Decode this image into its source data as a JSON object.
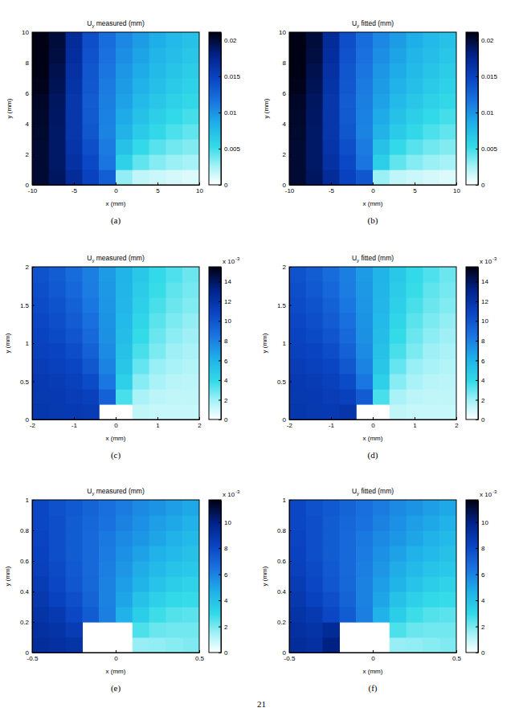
{
  "chart_data": [
    {
      "type": "heatmap",
      "title": "Uy measured (mm)",
      "x_label": "x (mm)",
      "y_label": "y (mm)",
      "caption": "(a)",
      "xlim": [
        -10,
        10
      ],
      "ylim": [
        0,
        10
      ],
      "xticks": [
        -10,
        -5,
        0,
        5,
        10
      ],
      "yticks": [
        0,
        2,
        4,
        6,
        8,
        10
      ],
      "x": [
        -9,
        -7,
        -5,
        -3,
        -1,
        1,
        3,
        5,
        7,
        9
      ],
      "y": [
        0.5,
        1.5,
        2.5,
        3.5,
        4.5,
        5.5,
        6.5,
        7.5,
        8.5,
        9.5
      ],
      "values": [
        [
          0.0202,
          0.019,
          0.017,
          0.015,
          0.013,
          0.003,
          0.0018,
          0.0015,
          0.0012,
          0.001
        ],
        [
          0.0202,
          0.0188,
          0.0165,
          0.0145,
          0.0115,
          0.006,
          0.0042,
          0.0033,
          0.0028,
          0.0025
        ],
        [
          0.0202,
          0.0188,
          0.0162,
          0.014,
          0.0112,
          0.0072,
          0.0054,
          0.0044,
          0.0038,
          0.0034
        ],
        [
          0.0203,
          0.0188,
          0.016,
          0.0135,
          0.0108,
          0.0082,
          0.0065,
          0.0055,
          0.0047,
          0.0042
        ],
        [
          0.0204,
          0.0189,
          0.016,
          0.0133,
          0.0109,
          0.0087,
          0.0072,
          0.0062,
          0.0054,
          0.0049
        ],
        [
          0.0205,
          0.019,
          0.016,
          0.0132,
          0.011,
          0.0092,
          0.0078,
          0.0068,
          0.006,
          0.0055
        ],
        [
          0.0208,
          0.0193,
          0.0163,
          0.0134,
          0.0112,
          0.0095,
          0.0083,
          0.0073,
          0.0065,
          0.006
        ],
        [
          0.021,
          0.0195,
          0.0165,
          0.0135,
          0.0115,
          0.0098,
          0.0087,
          0.0077,
          0.007,
          0.0064
        ],
        [
          0.021,
          0.0198,
          0.0168,
          0.0138,
          0.0118,
          0.0102,
          0.0091,
          0.0081,
          0.0074,
          0.0068
        ],
        [
          0.021,
          0.02,
          0.017,
          0.014,
          0.012,
          0.0105,
          0.0095,
          0.0085,
          0.0078,
          0.0072
        ]
      ],
      "colorbar_lim": [
        0,
        0.0211
      ],
      "colorbar_ticks": [
        0,
        0.005,
        0.01,
        0.015,
        0.02
      ]
    },
    {
      "type": "heatmap",
      "title": "Uy fitted (mm)",
      "x_label": "x (mm)",
      "y_label": "y (mm)",
      "caption": "(b)",
      "xlim": [
        -10,
        10
      ],
      "ylim": [
        0,
        10
      ],
      "xticks": [
        -10,
        -5,
        0,
        5,
        10
      ],
      "yticks": [
        0,
        2,
        4,
        6,
        8,
        10
      ],
      "x": [
        -9,
        -7,
        -5,
        -3,
        -1,
        1,
        3,
        5,
        7,
        9
      ],
      "y": [
        0.5,
        1.5,
        2.5,
        3.5,
        4.5,
        5.5,
        6.5,
        7.5,
        8.5,
        9.5
      ],
      "values": [
        [
          0.0202,
          0.019,
          0.017,
          0.015,
          0.0135,
          0.0028,
          0.0018,
          0.0015,
          0.0012,
          0.001
        ],
        [
          0.0202,
          0.0188,
          0.0165,
          0.0145,
          0.0115,
          0.0062,
          0.0042,
          0.0033,
          0.0028,
          0.0025
        ],
        [
          0.0202,
          0.0188,
          0.0162,
          0.014,
          0.0112,
          0.0072,
          0.0054,
          0.0044,
          0.0038,
          0.0034
        ],
        [
          0.0203,
          0.0188,
          0.016,
          0.0135,
          0.0108,
          0.0082,
          0.0065,
          0.0055,
          0.0047,
          0.0042
        ],
        [
          0.0204,
          0.0189,
          0.016,
          0.0133,
          0.0109,
          0.0087,
          0.0072,
          0.0062,
          0.0054,
          0.0049
        ],
        [
          0.0205,
          0.019,
          0.016,
          0.0132,
          0.011,
          0.0092,
          0.0078,
          0.0068,
          0.006,
          0.0055
        ],
        [
          0.0208,
          0.0193,
          0.0163,
          0.0134,
          0.0112,
          0.0095,
          0.0083,
          0.0073,
          0.0065,
          0.006
        ],
        [
          0.021,
          0.0195,
          0.0165,
          0.0135,
          0.0115,
          0.0098,
          0.0087,
          0.0077,
          0.007,
          0.0064
        ],
        [
          0.021,
          0.0198,
          0.0168,
          0.0138,
          0.0118,
          0.0102,
          0.0091,
          0.0081,
          0.0074,
          0.0068
        ],
        [
          0.021,
          0.02,
          0.017,
          0.014,
          0.012,
          0.0105,
          0.0095,
          0.0085,
          0.0078,
          0.0072
        ]
      ],
      "colorbar_lim": [
        0,
        0.0211
      ],
      "colorbar_ticks": [
        0,
        0.005,
        0.01,
        0.015,
        0.02
      ]
    },
    {
      "type": "heatmap",
      "title": "Uy measured (mm)",
      "x_label": "x (mm)",
      "y_label": "y (mm)",
      "caption": "(c)",
      "xlim": [
        -2,
        2
      ],
      "ylim": [
        0,
        2
      ],
      "xticks": [
        -2,
        -1,
        0,
        1,
        2
      ],
      "yticks": [
        0,
        0.5,
        1,
        1.5,
        2
      ],
      "x": [
        -1.8,
        -1.4,
        -1,
        -0.6,
        -0.2,
        0.2,
        0.6,
        1,
        1.4,
        1.8
      ],
      "y": [
        0.1,
        0.3,
        0.5,
        0.7,
        0.9,
        1.1,
        1.3,
        1.5,
        1.7,
        1.9
      ],
      "values": [
        [
          0.0117,
          0.0116,
          0.0115,
          0.0114,
          null,
          null,
          0.0013,
          0.0012,
          0.0012,
          0.0012
        ],
        [
          0.0116,
          0.0115,
          0.0113,
          0.0111,
          0.0094,
          0.0035,
          0.0018,
          0.0014,
          0.0013,
          0.0013
        ],
        [
          0.0115,
          0.0114,
          0.0111,
          0.0105,
          0.0084,
          0.0045,
          0.0024,
          0.0018,
          0.0015,
          0.0014
        ],
        [
          0.0113,
          0.0111,
          0.0108,
          0.0099,
          0.0079,
          0.005,
          0.003,
          0.0021,
          0.0018,
          0.0016
        ],
        [
          0.0111,
          0.0109,
          0.0104,
          0.0094,
          0.0076,
          0.0053,
          0.0035,
          0.0026,
          0.002,
          0.0018
        ],
        [
          0.0109,
          0.0106,
          0.01,
          0.009,
          0.0074,
          0.0055,
          0.0039,
          0.0029,
          0.0023,
          0.002
        ],
        [
          0.0107,
          0.0103,
          0.0097,
          0.0087,
          0.0073,
          0.0057,
          0.0042,
          0.0032,
          0.0026,
          0.0022
        ],
        [
          0.0105,
          0.0101,
          0.0094,
          0.0084,
          0.0072,
          0.0058,
          0.0045,
          0.0035,
          0.0029,
          0.0025
        ],
        [
          0.0103,
          0.0098,
          0.0091,
          0.0082,
          0.0071,
          0.0059,
          0.0047,
          0.0038,
          0.0031,
          0.0027
        ],
        [
          0.0101,
          0.0096,
          0.0089,
          0.0081,
          0.007,
          0.006,
          0.0049,
          0.004,
          0.0034,
          0.0029
        ]
      ],
      "colorbar_lim": [
        0,
        0.0155
      ],
      "colorbar_ticks": [
        0,
        {
          "value": 0.002,
          "label": "2"
        },
        {
          "value": 0.004,
          "label": "4"
        },
        {
          "value": 0.006,
          "label": "6"
        },
        {
          "value": 0.008,
          "label": "8"
        },
        {
          "value": 0.01,
          "label": "10"
        },
        {
          "value": 0.012,
          "label": "12"
        },
        {
          "value": 0.014,
          "label": "14"
        }
      ],
      "colorbar_scale": "x 10",
      "colorbar_scale_exponent": "-3"
    },
    {
      "type": "heatmap",
      "title": "Uy fitted (mm)",
      "x_label": "x (mm)",
      "y_label": "y (mm)",
      "caption": "(d)",
      "xlim": [
        -2,
        2
      ],
      "ylim": [
        0,
        2
      ],
      "xticks": [
        -2,
        -1,
        0,
        1,
        2
      ],
      "yticks": [
        0,
        0.5,
        1,
        1.5,
        2
      ],
      "x": [
        -1.8,
        -1.4,
        -1,
        -0.6,
        -0.2,
        0.2,
        0.6,
        1,
        1.4,
        1.8
      ],
      "y": [
        0.1,
        0.3,
        0.5,
        0.7,
        0.9,
        1.1,
        1.3,
        1.5,
        1.7,
        1.9
      ],
      "values": [
        [
          0.0117,
          0.0116,
          0.0115,
          0.0118,
          null,
          null,
          0.0013,
          0.0012,
          0.0012,
          0.0012
        ],
        [
          0.0116,
          0.0115,
          0.0113,
          0.0111,
          0.0097,
          0.0035,
          0.0018,
          0.0014,
          0.0013,
          0.0013
        ],
        [
          0.0115,
          0.0114,
          0.0111,
          0.0105,
          0.0084,
          0.0045,
          0.0024,
          0.0018,
          0.0015,
          0.0014
        ],
        [
          0.0113,
          0.0111,
          0.0108,
          0.0099,
          0.0079,
          0.005,
          0.003,
          0.0021,
          0.0018,
          0.0016
        ],
        [
          0.0111,
          0.0109,
          0.0104,
          0.0094,
          0.0076,
          0.0053,
          0.0035,
          0.0026,
          0.002,
          0.0018
        ],
        [
          0.0109,
          0.0106,
          0.01,
          0.009,
          0.0074,
          0.0055,
          0.0039,
          0.0029,
          0.0023,
          0.002
        ],
        [
          0.0107,
          0.0103,
          0.0097,
          0.0087,
          0.0073,
          0.0057,
          0.0042,
          0.0032,
          0.0026,
          0.0022
        ],
        [
          0.0105,
          0.0101,
          0.0094,
          0.0084,
          0.0072,
          0.0058,
          0.0045,
          0.0035,
          0.0029,
          0.0025
        ],
        [
          0.0103,
          0.0098,
          0.0091,
          0.0082,
          0.0071,
          0.0059,
          0.0047,
          0.0038,
          0.0031,
          0.0027
        ],
        [
          0.0101,
          0.0096,
          0.0089,
          0.0081,
          0.007,
          0.006,
          0.0049,
          0.004,
          0.0034,
          0.0029
        ]
      ],
      "colorbar_lim": [
        0,
        0.0155
      ],
      "colorbar_ticks": [
        0,
        {
          "value": 0.002,
          "label": "2"
        },
        {
          "value": 0.004,
          "label": "4"
        },
        {
          "value": 0.006,
          "label": "6"
        },
        {
          "value": 0.008,
          "label": "8"
        },
        {
          "value": 0.01,
          "label": "10"
        },
        {
          "value": 0.012,
          "label": "12"
        },
        {
          "value": 0.014,
          "label": "14"
        }
      ],
      "colorbar_scale": "x 10",
      "colorbar_scale_exponent": "-3"
    },
    {
      "type": "heatmap",
      "title": "Uy measured (mm)",
      "x_label": "x (mm)",
      "y_label": "y (mm)",
      "caption": "(e)",
      "xlim": [
        -0.5,
        0.5
      ],
      "ylim": [
        0,
        1
      ],
      "xticks": [
        -0.5,
        0,
        0.5
      ],
      "yticks": [
        0,
        0.2,
        0.4,
        0.6,
        0.8,
        1
      ],
      "x": [
        -0.45,
        -0.35,
        -0.25,
        -0.15,
        -0.05,
        0.05,
        0.15,
        0.25,
        0.35,
        0.45
      ],
      "y": [
        0.05,
        0.15,
        0.25,
        0.35,
        0.45,
        0.55,
        0.65,
        0.75,
        0.85,
        0.95
      ],
      "values": [
        [
          0.0094,
          0.0092,
          0.009,
          null,
          null,
          null,
          0.0016,
          0.0017,
          0.0018,
          0.0019
        ],
        [
          0.0092,
          0.009,
          0.0086,
          null,
          null,
          null,
          0.0026,
          0.0022,
          0.0021,
          0.0021
        ],
        [
          0.009,
          0.0087,
          0.0081,
          0.0073,
          0.0061,
          0.0046,
          0.0035,
          0.0028,
          0.0025,
          0.0024
        ],
        [
          0.0088,
          0.0083,
          0.0078,
          0.007,
          0.006,
          0.005,
          0.004,
          0.0034,
          0.003,
          0.0029
        ],
        [
          0.0086,
          0.0081,
          0.0075,
          0.0069,
          0.006,
          0.0052,
          0.0045,
          0.0039,
          0.0035,
          0.0033
        ],
        [
          0.0084,
          0.008,
          0.0074,
          0.0068,
          0.0061,
          0.0054,
          0.0048,
          0.0043,
          0.0039,
          0.0037
        ],
        [
          0.0083,
          0.0078,
          0.0073,
          0.0068,
          0.0062,
          0.0056,
          0.0051,
          0.0046,
          0.0043,
          0.004
        ],
        [
          0.0082,
          0.0078,
          0.0073,
          0.0068,
          0.0063,
          0.0058,
          0.0054,
          0.005,
          0.0046,
          0.0043
        ],
        [
          0.0081,
          0.0078,
          0.0073,
          0.0069,
          0.0065,
          0.006,
          0.0056,
          0.0052,
          0.0049,
          0.0046
        ],
        [
          0.0081,
          0.0077,
          0.0074,
          0.007,
          0.0066,
          0.0062,
          0.0058,
          0.0055,
          0.0052,
          0.0049
        ]
      ],
      "colorbar_lim": [
        0,
        0.0117
      ],
      "colorbar_ticks": [
        0,
        {
          "value": 0.002,
          "label": "2"
        },
        {
          "value": 0.004,
          "label": "4"
        },
        {
          "value": 0.006,
          "label": "6"
        },
        {
          "value": 0.008,
          "label": "8"
        },
        {
          "value": 0.01,
          "label": "10"
        }
      ],
      "colorbar_scale": "x 10",
      "colorbar_scale_exponent": "-3"
    },
    {
      "type": "heatmap",
      "title": "Uy fitted (mm)",
      "x_label": "x (mm)",
      "y_label": "y (mm)",
      "caption": "(f)",
      "xlim": [
        -0.5,
        0.5
      ],
      "ylim": [
        0,
        1
      ],
      "xticks": [
        -0.5,
        0,
        0.5
      ],
      "yticks": [
        0,
        0.2,
        0.4,
        0.6,
        0.8,
        1
      ],
      "x": [
        -0.45,
        -0.35,
        -0.25,
        -0.15,
        -0.05,
        0.05,
        0.15,
        0.25,
        0.35,
        0.45
      ],
      "y": [
        0.05,
        0.15,
        0.25,
        0.35,
        0.45,
        0.55,
        0.65,
        0.75,
        0.85,
        0.95
      ],
      "values": [
        [
          0.0094,
          0.0092,
          0.01,
          null,
          null,
          null,
          0.0016,
          0.0017,
          0.0018,
          0.0019
        ],
        [
          0.0092,
          0.009,
          0.0095,
          null,
          null,
          null,
          0.0026,
          0.0022,
          0.0021,
          0.0021
        ],
        [
          0.009,
          0.0087,
          0.0081,
          0.0073,
          0.0061,
          0.0046,
          0.0035,
          0.0028,
          0.0025,
          0.0024
        ],
        [
          0.0088,
          0.0083,
          0.0078,
          0.007,
          0.006,
          0.005,
          0.004,
          0.0034,
          0.003,
          0.0029
        ],
        [
          0.0086,
          0.0081,
          0.0075,
          0.0069,
          0.006,
          0.0052,
          0.0045,
          0.0039,
          0.0035,
          0.0033
        ],
        [
          0.0084,
          0.008,
          0.0074,
          0.0068,
          0.0061,
          0.0054,
          0.0048,
          0.0043,
          0.0039,
          0.0037
        ],
        [
          0.0083,
          0.0078,
          0.0073,
          0.0068,
          0.0062,
          0.0056,
          0.0051,
          0.0046,
          0.0043,
          0.004
        ],
        [
          0.0082,
          0.0078,
          0.0073,
          0.0068,
          0.0063,
          0.0058,
          0.0054,
          0.005,
          0.0046,
          0.0043
        ],
        [
          0.0081,
          0.0078,
          0.0073,
          0.0069,
          0.0065,
          0.006,
          0.0056,
          0.0052,
          0.0049,
          0.0046
        ],
        [
          0.0081,
          0.0077,
          0.0074,
          0.007,
          0.0066,
          0.0062,
          0.0058,
          0.0055,
          0.0052,
          0.0049
        ]
      ],
      "colorbar_lim": [
        0,
        0.0117
      ],
      "colorbar_ticks": [
        0,
        {
          "value": 0.002,
          "label": "2"
        },
        {
          "value": 0.004,
          "label": "4"
        },
        {
          "value": 0.006,
          "label": "6"
        },
        {
          "value": 0.008,
          "label": "8"
        },
        {
          "value": 0.01,
          "label": "10"
        }
      ],
      "colorbar_scale": "x 10",
      "colorbar_scale_exponent": "-3"
    }
  ],
  "page_number": "21"
}
